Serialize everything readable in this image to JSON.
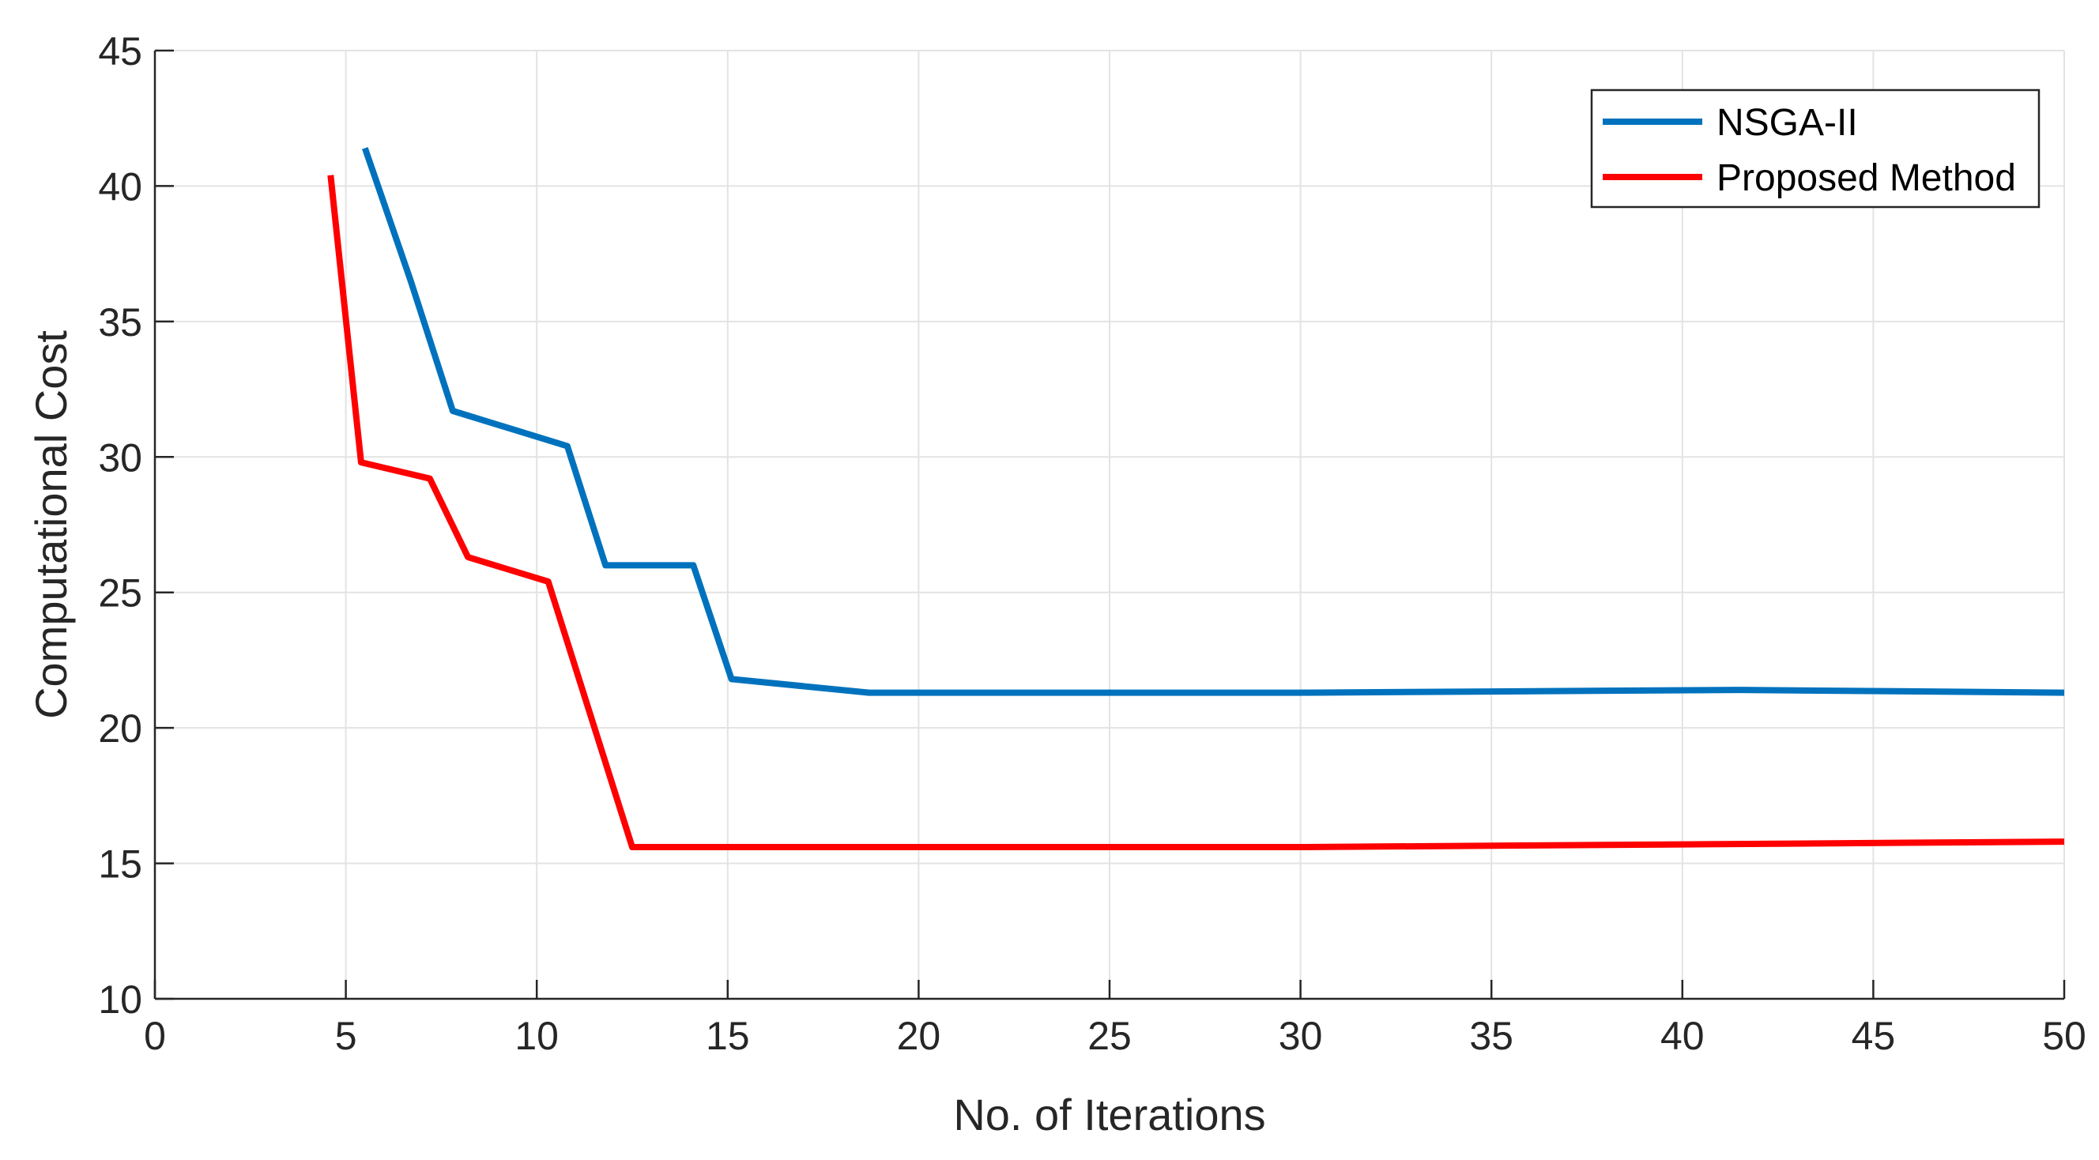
{
  "chart_data": {
    "type": "line",
    "title": "",
    "xlabel": "No. of Iterations",
    "ylabel": "Computational Cost",
    "xlim": [
      0,
      50
    ],
    "ylim": [
      10,
      45
    ],
    "xticks": [
      0,
      5,
      10,
      15,
      20,
      25,
      30,
      35,
      40,
      45,
      50
    ],
    "yticks": [
      10,
      15,
      20,
      25,
      30,
      35,
      40,
      45
    ],
    "xtick_labels": [
      "0",
      "5",
      "10",
      "15",
      "20",
      "25",
      "30",
      "35",
      "40",
      "45",
      "50"
    ],
    "ytick_labels": [
      "10",
      "15",
      "20",
      "25",
      "30",
      "35",
      "40",
      "45"
    ],
    "grid": true,
    "legend_position": "top-right",
    "series": [
      {
        "name": "NSGA-II",
        "color": "#0072BD",
        "x": [
          5.5,
          6.7,
          7.8,
          10.8,
          11.8,
          14.1,
          15.1,
          18.7,
          30,
          41.5,
          50
        ],
        "y": [
          41.4,
          36.5,
          31.7,
          30.4,
          26.0,
          26.0,
          21.8,
          21.3,
          21.3,
          21.4,
          21.3
        ]
      },
      {
        "name": "Proposed Method",
        "color": "#FF0000",
        "x": [
          4.6,
          5.4,
          7.2,
          8.2,
          10.3,
          12.5,
          30,
          40,
          50
        ],
        "y": [
          40.4,
          29.8,
          29.2,
          26.3,
          25.4,
          15.6,
          15.6,
          15.7,
          15.8
        ]
      }
    ]
  }
}
